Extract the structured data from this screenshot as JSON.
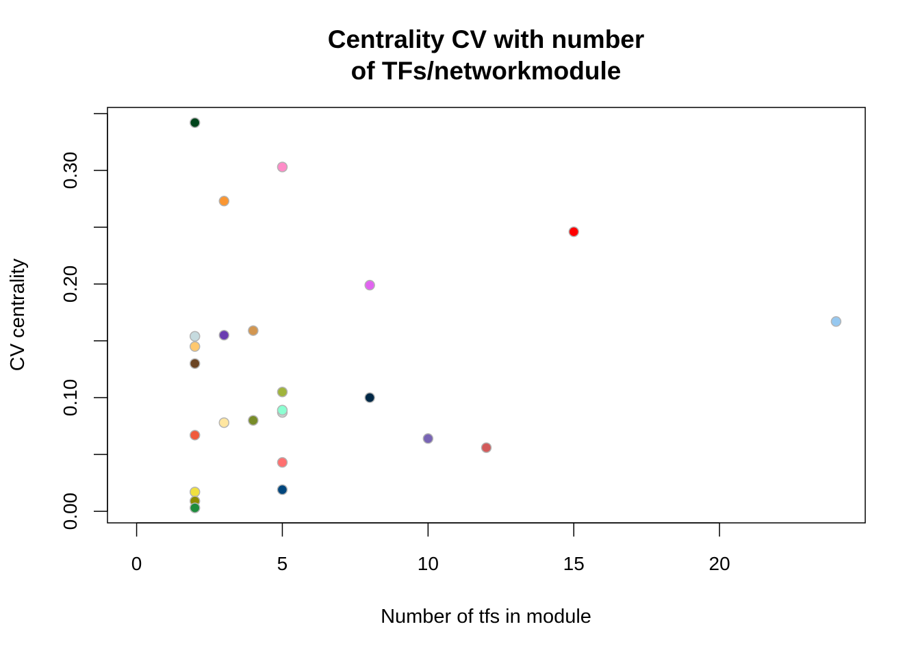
{
  "chart_data": {
    "type": "scatter",
    "title_lines": [
      "Centrality CV with number",
      "of TFs/networkmodule"
    ],
    "xlabel": "Number of tfs in module",
    "ylabel": "CV centrality",
    "xlim": [
      -1,
      25
    ],
    "ylim": [
      -0.0102,
      0.3554
    ],
    "x_ticks": [
      0,
      5,
      10,
      15,
      20
    ],
    "x_tick_labels": [
      "0",
      "5",
      "10",
      "15",
      "20"
    ],
    "y_ticks": [
      0,
      0.05,
      0.1,
      0.15,
      0.2,
      0.25,
      0.3,
      0.35
    ],
    "y_tick_labels": [
      "0.00",
      "",
      "0.10",
      "",
      "0.20",
      "",
      "0.30",
      ""
    ],
    "point_outline": "#b3b3b3",
    "points": [
      {
        "x": 2,
        "y": 0.342,
        "color": "#00441b"
      },
      {
        "x": 2,
        "y": 0.154,
        "color": "#c6dbdf"
      },
      {
        "x": 2,
        "y": 0.145,
        "color": "#ffc86e"
      },
      {
        "x": 2,
        "y": 0.13,
        "color": "#6b4423"
      },
      {
        "x": 2,
        "y": 0.067,
        "color": "#f05a3c"
      },
      {
        "x": 2,
        "y": 0.017,
        "color": "#f0e040"
      },
      {
        "x": 2,
        "y": 0.009,
        "color": "#8c8c00"
      },
      {
        "x": 2,
        "y": 0.003,
        "color": "#1e8c3c"
      },
      {
        "x": 3,
        "y": 0.273,
        "color": "#fa9632"
      },
      {
        "x": 3,
        "y": 0.155,
        "color": "#6a3db0"
      },
      {
        "x": 3,
        "y": 0.078,
        "color": "#ffe6a0"
      },
      {
        "x": 4,
        "y": 0.159,
        "color": "#d29650"
      },
      {
        "x": 4,
        "y": 0.08,
        "color": "#788c28"
      },
      {
        "x": 5,
        "y": 0.303,
        "color": "#ff8cc8"
      },
      {
        "x": 5,
        "y": 0.105,
        "color": "#a0b43c"
      },
      {
        "x": 5,
        "y": 0.087,
        "color": "#d2d2d2"
      },
      {
        "x": 5,
        "y": 0.089,
        "color": "#8cffd2"
      },
      {
        "x": 5,
        "y": 0.043,
        "color": "#ff7070"
      },
      {
        "x": 5,
        "y": 0.019,
        "color": "#00467d"
      },
      {
        "x": 8,
        "y": 0.199,
        "color": "#e164f0"
      },
      {
        "x": 8,
        "y": 0.1,
        "color": "#002846"
      },
      {
        "x": 10,
        "y": 0.064,
        "color": "#7864b4"
      },
      {
        "x": 12,
        "y": 0.056,
        "color": "#d25a5a"
      },
      {
        "x": 15,
        "y": 0.246,
        "color": "#ff0000"
      },
      {
        "x": 24,
        "y": 0.167,
        "color": "#96c8f0"
      }
    ]
  }
}
